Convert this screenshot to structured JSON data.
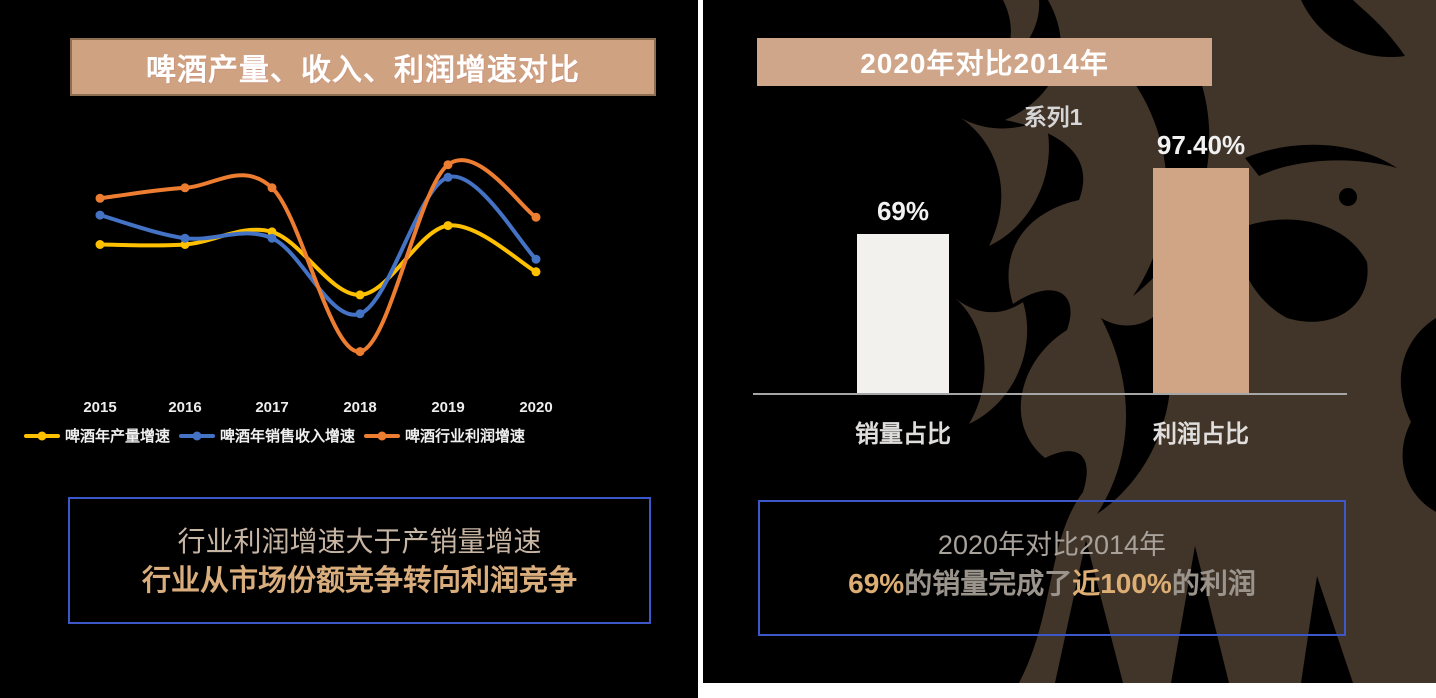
{
  "theme": {
    "background": "#000000",
    "banner_fill": "#cfa382",
    "banner_border": "#8e6e50",
    "box_border": "#3b57c8",
    "divider": "#ffffff",
    "axis_line": "#a6a6a6",
    "lion_brown": "#413429",
    "gold_text": "#dcae74",
    "muted_text": "#9b948c"
  },
  "left_panel": {
    "title": "啤酒产量、收入、利润增速对比",
    "callout": {
      "line1": "行业利润增速大于产销量增速",
      "line2": "行业从市场份额竞争转向利润竞争"
    }
  },
  "right_panel": {
    "title": "2020年对比2014年",
    "callout": {
      "line1": "2020年对比2014年",
      "line2_segments": [
        {
          "text": "69%",
          "emphasis": true
        },
        {
          "text": "的销量完成了",
          "emphasis": false
        },
        {
          "text": "近100%",
          "emphasis": true
        },
        {
          "text": "的利润",
          "emphasis": false
        }
      ]
    }
  },
  "chart_data": [
    {
      "id": "beer-growth-lines",
      "type": "line",
      "title": "啤酒产量、收入、利润增速对比",
      "categories": [
        "2015",
        "2016",
        "2017",
        "2018",
        "2019",
        "2020"
      ],
      "series": [
        {
          "name": "啤酒年产量增速",
          "color": "#FFC000",
          "values": [
            55,
            55,
            61,
            31,
            64,
            42
          ]
        },
        {
          "name": "啤酒年销售收入增速",
          "color": "#4472C4",
          "values": [
            69,
            58,
            58,
            22,
            87,
            48
          ]
        },
        {
          "name": "啤酒行业利润增速",
          "color": "#ED7D31",
          "values": [
            77,
            82,
            82,
            4,
            93,
            68
          ]
        }
      ],
      "ylim": [
        0,
        100
      ],
      "grid": false,
      "legend_position": "bottom",
      "note": "no y-axis shown in source; values are relative estimates on a 0-100 scale"
    },
    {
      "id": "volume-vs-profit-share",
      "type": "bar",
      "title": "2020年对比2014年",
      "series_label": "系列1",
      "categories": [
        "销量占比",
        "利润占比"
      ],
      "values": [
        69,
        97.4
      ],
      "data_labels": [
        "69%",
        "97.40%"
      ],
      "bar_colors": [
        "#f2f1ee",
        "#cfa585"
      ],
      "ylim": [
        0,
        100
      ],
      "grid": false
    }
  ]
}
